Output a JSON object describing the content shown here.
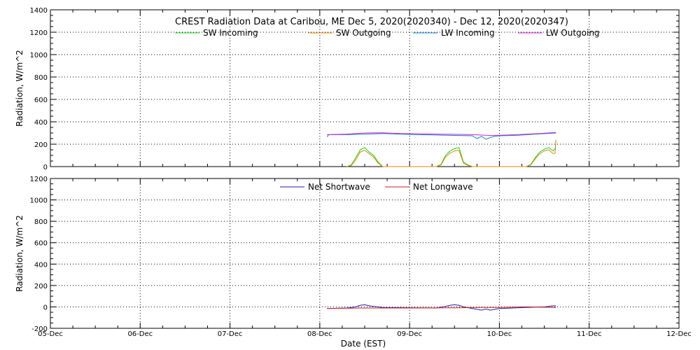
{
  "chart_data": [
    {
      "type": "line",
      "title": "CREST Radiation Data at Caribou, ME   Dec  5, 2020(2020340) - Dec 12, 2020(2020347)",
      "ylabel": "Radiation, W/m^2",
      "xlabel": "",
      "ylim": [
        0,
        1400
      ],
      "yticks": [
        "0",
        "200",
        "400",
        "600",
        "800",
        "1000",
        "1200",
        "1400"
      ],
      "xlim": [
        0,
        7
      ],
      "grid": true,
      "legend_position": "top",
      "series": [
        {
          "name": "SW Incoming",
          "color": "#22cc22",
          "x": [
            3.3,
            3.35,
            3.4,
            3.45,
            3.5,
            3.55,
            3.6,
            3.65,
            3.7,
            4.3,
            4.35,
            4.4,
            4.45,
            4.5,
            4.55,
            4.6,
            4.65,
            4.7,
            5.3,
            5.35,
            5.4,
            5.45,
            5.5,
            5.55,
            5.6,
            5.62,
            5.63
          ],
          "y": [
            0,
            15,
            80,
            150,
            170,
            130,
            100,
            40,
            0,
            0,
            20,
            100,
            140,
            160,
            170,
            40,
            15,
            0,
            0,
            20,
            80,
            130,
            155,
            170,
            140,
            160,
            220
          ]
        },
        {
          "name": "SW Outgoing",
          "color": "#dd8800",
          "x": [
            3.3,
            3.35,
            3.4,
            3.45,
            3.5,
            3.55,
            3.6,
            3.65,
            3.7,
            4.3,
            4.35,
            4.4,
            4.45,
            4.5,
            4.55,
            4.6,
            4.65,
            4.7,
            5.3,
            5.35,
            5.4,
            5.45,
            5.5,
            5.55,
            5.6,
            5.62,
            5.63
          ],
          "y": [
            0,
            10,
            60,
            130,
            145,
            115,
            85,
            30,
            0,
            0,
            15,
            85,
            120,
            140,
            145,
            30,
            10,
            0,
            0,
            15,
            70,
            115,
            140,
            150,
            115,
            120,
            240
          ]
        },
        {
          "name": "LW Incoming",
          "color": "#1188cc",
          "x": [
            3.08,
            3.1,
            3.3,
            3.5,
            3.7,
            3.9,
            4.1,
            4.3,
            4.5,
            4.7,
            4.75,
            4.8,
            4.85,
            4.9,
            4.95,
            5.0,
            5.2,
            5.4,
            5.63
          ],
          "y": [
            265,
            285,
            285,
            290,
            295,
            290,
            285,
            282,
            278,
            275,
            250,
            270,
            245,
            260,
            270,
            275,
            280,
            290,
            300
          ]
        },
        {
          "name": "LW Outgoing",
          "color": "#cc22cc",
          "x": [
            3.08,
            3.3,
            3.5,
            3.7,
            3.9,
            4.1,
            4.3,
            4.5,
            4.7,
            4.9,
            5.0,
            5.2,
            5.4,
            5.63
          ],
          "y": [
            285,
            290,
            300,
            302,
            295,
            292,
            290,
            288,
            285,
            278,
            280,
            285,
            293,
            305
          ]
        }
      ]
    },
    {
      "type": "line",
      "title": "",
      "ylabel": "Radiation, W/m^2",
      "xlabel": "Date (EST)",
      "ylim": [
        -200,
        1200
      ],
      "yticks": [
        "-200",
        "0",
        "200",
        "400",
        "600",
        "800",
        "1000",
        "1200"
      ],
      "xlim": [
        0,
        7
      ],
      "xticks": [
        "05-Dec",
        "06-Dec",
        "07-Dec",
        "08-Dec",
        "09-Dec",
        "10-Dec",
        "11-Dec",
        "12-Dec"
      ],
      "grid": true,
      "legend_position": "top",
      "series": [
        {
          "name": "Net Shortwave",
          "color": "#2222aa",
          "x": [
            3.08,
            3.3,
            3.4,
            3.45,
            3.5,
            3.55,
            3.6,
            3.7,
            4.3,
            4.4,
            4.45,
            4.5,
            4.55,
            4.6,
            4.7,
            4.8,
            4.85,
            4.9,
            5.0,
            5.3,
            5.5,
            5.6,
            5.63
          ],
          "y": [
            -15,
            -10,
            0,
            15,
            20,
            10,
            5,
            -5,
            -10,
            5,
            15,
            20,
            15,
            0,
            -15,
            -30,
            -20,
            -30,
            -15,
            -5,
            0,
            10,
            10
          ]
        },
        {
          "name": "Net Longwave",
          "color": "#cc2222",
          "x": [
            3.08,
            3.5,
            4.0,
            4.5,
            4.8,
            5.0,
            5.3,
            5.63
          ],
          "y": [
            -15,
            -10,
            -10,
            -8,
            -5,
            -5,
            0,
            -5
          ]
        }
      ]
    }
  ]
}
